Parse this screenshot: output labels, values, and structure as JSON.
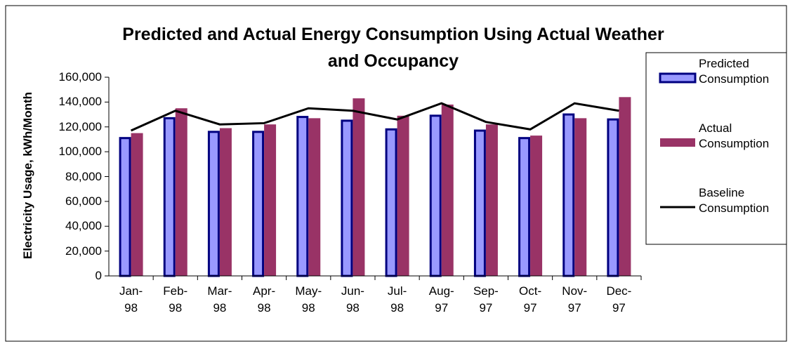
{
  "chart_data": {
    "type": "bar",
    "title": "Predicted and Actual Energy Consumption Using Actual Weather and Occupancy",
    "y_label": "Electricity Usage, kWh/Month",
    "categories": [
      "Jan-98",
      "Feb-98",
      "Mar-98",
      "Apr-98",
      "May-98",
      "Jun-98",
      "Jul-98",
      "Aug-97",
      "Sep-97",
      "Oct-97",
      "Nov-97",
      "Dec-97"
    ],
    "series": [
      {
        "name": "Predicted Consumption",
        "type": "bar",
        "color": "#9999ff",
        "edge_color": "#000080",
        "values": [
          111000,
          127000,
          116000,
          116000,
          128000,
          125000,
          118000,
          129000,
          117000,
          111000,
          130000,
          126000
        ]
      },
      {
        "name": "Actual Consumption",
        "type": "bar",
        "color": "#993366",
        "values": [
          115000,
          135000,
          119000,
          122000,
          127000,
          143000,
          129000,
          138000,
          122000,
          113000,
          127000,
          144000
        ]
      },
      {
        "name": "Baseline Consumption",
        "type": "line",
        "color": "#000000",
        "values": [
          117000,
          133000,
          122000,
          123000,
          135000,
          133000,
          126000,
          139000,
          124000,
          118000,
          139000,
          133000
        ]
      }
    ],
    "ylim": [
      0,
      160000
    ],
    "yticks": [
      0,
      {
        "value": 20000,
        "label": "20,000"
      },
      {
        "value": 40000,
        "label": "40,000"
      },
      {
        "value": 60000,
        "label": "60,000"
      },
      {
        "value": 80000,
        "label": "80,000"
      },
      {
        "value": 100000,
        "label": "100,000"
      },
      {
        "value": 120000,
        "label": "120,000"
      },
      {
        "value": 140000,
        "label": "140,000"
      },
      {
        "value": 160000,
        "label": "160,000"
      }
    ],
    "grid": false,
    "legend": "right"
  }
}
